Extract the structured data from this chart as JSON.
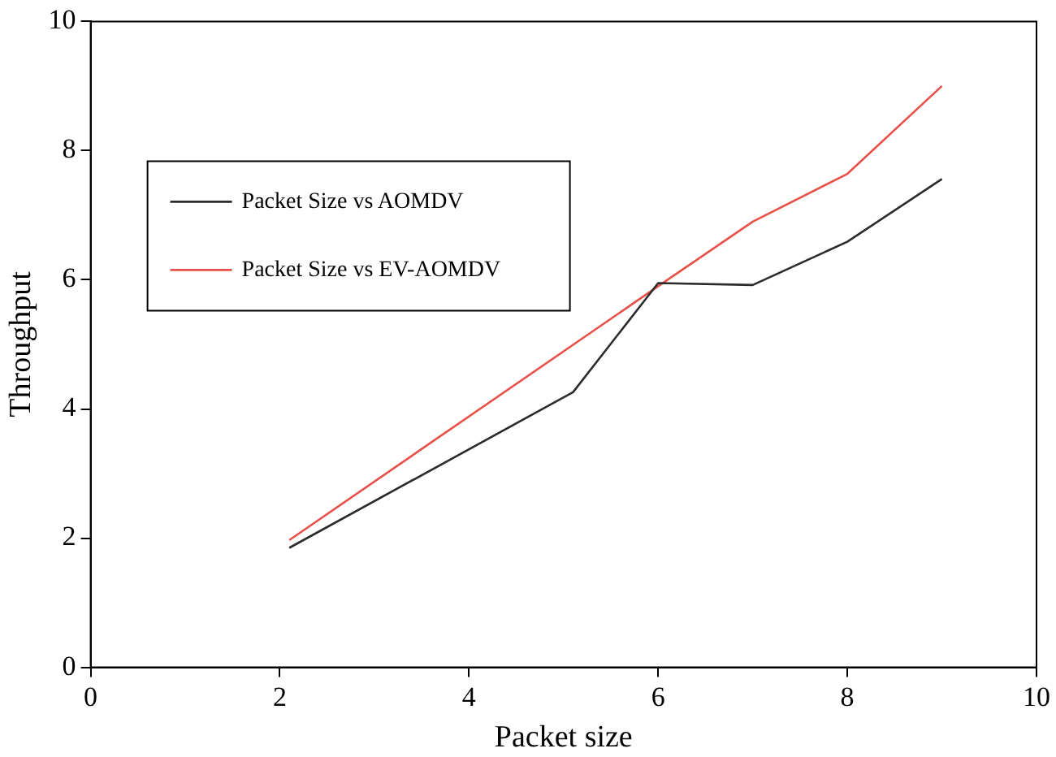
{
  "chart_data": {
    "type": "line",
    "xlabel": "Packet size",
    "ylabel": "Throughput",
    "xlim": [
      0,
      10
    ],
    "xticks": [
      0,
      2,
      4,
      6,
      8,
      10
    ],
    "ylim": [
      0,
      10
    ],
    "yticks": [
      0,
      2,
      4,
      6,
      8,
      10
    ],
    "grid": false,
    "legend": "top left",
    "marker": "none",
    "line_style": "solid",
    "series": [
      {
        "name": "Packet Size vs AOMDV",
        "color": "#2b2b2b",
        "x": [
          2.1,
          5.1,
          6.0,
          7.0,
          8.0,
          9.0
        ],
        "values": [
          1.85,
          4.26,
          5.95,
          5.92,
          6.59,
          7.56
        ]
      },
      {
        "name": "Packet Size vs EV-AOMDV",
        "color": "#e8504a",
        "x": [
          2.1,
          6.0,
          7.0,
          8.0,
          9.0
        ],
        "values": [
          1.97,
          5.9,
          6.9,
          7.64,
          9.0
        ]
      }
    ]
  }
}
